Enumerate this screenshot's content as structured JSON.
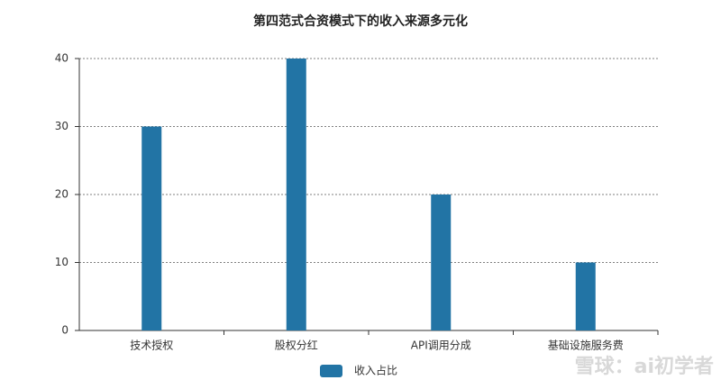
{
  "chart_data": {
    "type": "bar",
    "title": "第四范式合资模式下的收入来源多元化",
    "categories": [
      "技术授权",
      "股权分红",
      "API调用分成",
      "基础设施服务费"
    ],
    "series": [
      {
        "name": "收入占比",
        "color": "#2274a5",
        "values": [
          30,
          40,
          20,
          10
        ]
      }
    ],
    "ylim": [
      0,
      40
    ],
    "yticks": [
      0,
      10,
      20,
      30,
      40
    ],
    "grid": true,
    "legend": "bottom"
  },
  "watermark": "雪球：ai初学者"
}
